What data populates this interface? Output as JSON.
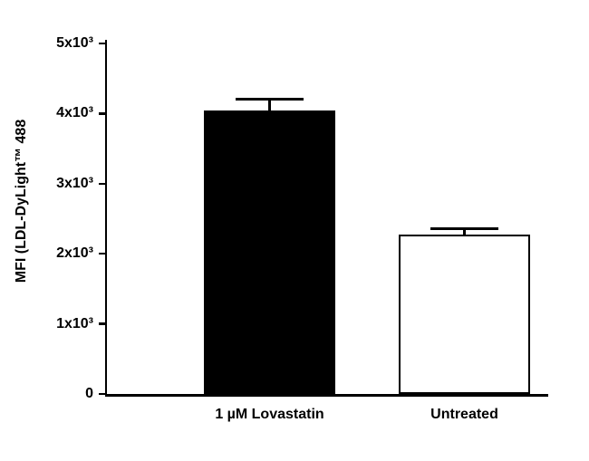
{
  "chart_data": {
    "type": "bar",
    "categories": [
      "1 µM Lovastatin",
      "Untreated"
    ],
    "values": [
      4050,
      2280
    ],
    "errors_upper": [
      160,
      80
    ],
    "title": "",
    "xlabel": "",
    "ylabel": "MFI (LDL-DyLight™ 488",
    "ylim": [
      0,
      5000
    ],
    "yticks": [
      0,
      1000,
      2000,
      3000,
      4000,
      5000
    ],
    "ytick_labels": [
      "0",
      "1x10³",
      "2x10³",
      "3x10³",
      "4x10³",
      "5x10³"
    ],
    "bar_colors": [
      "#000000",
      "#ffffff"
    ],
    "bar_border_color": "#000000",
    "grid": false,
    "legend": "none"
  }
}
